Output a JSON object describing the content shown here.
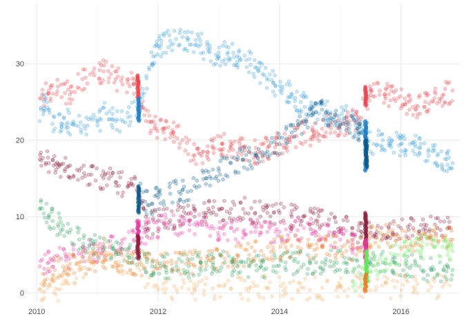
{
  "chart_data": {
    "type": "scatter",
    "title": "",
    "xlabel": "",
    "ylabel": "",
    "xlim": [
      2009.85,
      2016.97
    ],
    "ylim": [
      -1.2,
      37.8
    ],
    "x_ticks": [
      2010,
      2012,
      2014,
      2016
    ],
    "x_tick_labels": [
      "2010",
      "2012",
      "2014",
      "2016"
    ],
    "y_ticks": [
      0,
      10,
      20,
      30
    ],
    "y_tick_labels": [
      "0",
      "10",
      "20",
      "30"
    ],
    "grid": true,
    "legend": "none",
    "point_opacity": 0.25,
    "series": [
      {
        "color": "#3a9fd6",
        "points": [
          [
            2010.05,
            22.5
          ],
          [
            2010.15,
            25.5
          ],
          [
            2010.3,
            21.5
          ],
          [
            2010.45,
            23
          ],
          [
            2010.6,
            22
          ],
          [
            2010.8,
            21.5
          ],
          [
            2011.0,
            22.5
          ],
          [
            2011.15,
            23.5
          ],
          [
            2011.3,
            22.5
          ],
          [
            2011.5,
            23
          ],
          [
            2011.7,
            24
          ],
          [
            2011.85,
            29.5
          ],
          [
            2011.95,
            31
          ],
          [
            2012.05,
            32.5
          ],
          [
            2012.2,
            33
          ],
          [
            2012.4,
            33.5
          ],
          [
            2012.55,
            32.5
          ],
          [
            2012.7,
            32.5
          ],
          [
            2012.85,
            31.5
          ],
          [
            2013.0,
            31
          ],
          [
            2013.15,
            31.5
          ],
          [
            2013.3,
            31
          ],
          [
            2013.45,
            30.5
          ],
          [
            2013.6,
            29.5
          ],
          [
            2013.75,
            28.5
          ],
          [
            2013.9,
            27.5
          ],
          [
            2014.05,
            27
          ],
          [
            2014.2,
            26
          ],
          [
            2014.35,
            25
          ],
          [
            2014.5,
            24
          ],
          [
            2014.65,
            23.5
          ],
          [
            2014.8,
            23.5
          ],
          [
            2014.95,
            22.5
          ],
          [
            2015.1,
            23
          ],
          [
            2015.25,
            22
          ],
          [
            2015.35,
            21
          ],
          [
            2015.55,
            19.5
          ],
          [
            2015.7,
            20
          ],
          [
            2015.85,
            20
          ],
          [
            2016.0,
            19.5
          ],
          [
            2016.15,
            19.5
          ],
          [
            2016.3,
            19
          ],
          [
            2016.45,
            18.5
          ],
          [
            2016.6,
            18
          ],
          [
            2016.75,
            17.5
          ],
          [
            2016.85,
            17
          ]
        ]
      },
      {
        "color": "#e8474f",
        "points": [
          [
            2010.05,
            25.5
          ],
          [
            2010.2,
            26.5
          ],
          [
            2010.35,
            27
          ],
          [
            2010.55,
            26
          ],
          [
            2010.75,
            28
          ],
          [
            2010.95,
            28.5
          ],
          [
            2011.1,
            29
          ],
          [
            2011.3,
            28
          ],
          [
            2011.5,
            27.5
          ],
          [
            2011.65,
            27.5
          ],
          [
            2011.8,
            22.5
          ],
          [
            2011.95,
            22
          ],
          [
            2012.1,
            21.5
          ],
          [
            2012.25,
            21
          ],
          [
            2012.4,
            20
          ],
          [
            2012.6,
            18
          ],
          [
            2012.75,
            18.5
          ],
          [
            2012.9,
            19
          ],
          [
            2013.05,
            19.5
          ],
          [
            2013.2,
            19
          ],
          [
            2013.35,
            19
          ],
          [
            2013.5,
            18.5
          ],
          [
            2013.65,
            18.5
          ],
          [
            2013.8,
            19
          ],
          [
            2013.95,
            19.5
          ],
          [
            2014.1,
            20
          ],
          [
            2014.25,
            20.5
          ],
          [
            2014.4,
            21
          ],
          [
            2014.55,
            20.5
          ],
          [
            2014.7,
            21.5
          ],
          [
            2014.85,
            22
          ],
          [
            2015.0,
            22
          ],
          [
            2015.15,
            22.5
          ],
          [
            2015.3,
            23
          ],
          [
            2015.5,
            26.5
          ],
          [
            2015.65,
            26.5
          ],
          [
            2015.8,
            26
          ],
          [
            2015.95,
            25.5
          ],
          [
            2016.1,
            25
          ],
          [
            2016.25,
            24.5
          ],
          [
            2016.4,
            25
          ],
          [
            2016.55,
            25.5
          ],
          [
            2016.7,
            26
          ],
          [
            2016.85,
            26.5
          ]
        ]
      },
      {
        "color": "#0c5a8a",
        "points": [
          [
            2011.68,
            13
          ],
          [
            2011.85,
            11.5
          ],
          [
            2012.0,
            12.5
          ],
          [
            2012.2,
            13
          ],
          [
            2012.4,
            13.5
          ],
          [
            2012.6,
            14
          ],
          [
            2012.8,
            15
          ],
          [
            2013.0,
            16
          ],
          [
            2013.2,
            17
          ],
          [
            2013.4,
            17.5
          ],
          [
            2013.6,
            18
          ],
          [
            2013.8,
            18.5
          ],
          [
            2014.0,
            19.5
          ],
          [
            2014.2,
            21
          ],
          [
            2014.4,
            22.5
          ],
          [
            2014.55,
            23.5
          ],
          [
            2014.7,
            24
          ],
          [
            2014.9,
            23
          ],
          [
            2015.1,
            22
          ],
          [
            2015.3,
            21
          ],
          [
            2015.42,
            20.5
          ]
        ]
      },
      {
        "color": "#8a1e3c",
        "points": [
          [
            2010.05,
            17.5
          ],
          [
            2010.2,
            17
          ],
          [
            2010.35,
            16.5
          ],
          [
            2010.5,
            16.5
          ],
          [
            2010.7,
            16
          ],
          [
            2010.9,
            15.5
          ],
          [
            2011.1,
            15
          ],
          [
            2011.3,
            14.5
          ],
          [
            2011.5,
            14
          ],
          [
            2011.65,
            13.5
          ],
          [
            2011.8,
            9
          ],
          [
            2012.0,
            9.5
          ],
          [
            2012.2,
            9.5
          ],
          [
            2012.4,
            10
          ],
          [
            2012.6,
            10
          ],
          [
            2012.8,
            10.5
          ],
          [
            2013.0,
            11
          ],
          [
            2013.2,
            11
          ],
          [
            2013.4,
            11
          ],
          [
            2013.6,
            10.5
          ],
          [
            2013.8,
            10.5
          ],
          [
            2014.0,
            10.5
          ],
          [
            2014.2,
            10
          ],
          [
            2014.4,
            10
          ],
          [
            2014.6,
            9.5
          ],
          [
            2014.8,
            9
          ],
          [
            2015.0,
            8.5
          ],
          [
            2015.2,
            8.5
          ],
          [
            2015.35,
            8
          ],
          [
            2015.6,
            8
          ],
          [
            2015.8,
            8.5
          ],
          [
            2016.0,
            8.5
          ],
          [
            2016.2,
            8.5
          ],
          [
            2016.4,
            8.5
          ],
          [
            2016.6,
            8.5
          ],
          [
            2016.8,
            8.5
          ]
        ]
      },
      {
        "color": "#e8399e",
        "points": [
          [
            2010.05,
            3.5
          ],
          [
            2010.2,
            4
          ],
          [
            2010.4,
            4.5
          ],
          [
            2010.6,
            5
          ],
          [
            2010.8,
            5.5
          ],
          [
            2011.0,
            5.5
          ],
          [
            2011.2,
            6
          ],
          [
            2011.4,
            6.5
          ],
          [
            2011.6,
            7
          ],
          [
            2011.8,
            8
          ],
          [
            2012.0,
            8.5
          ],
          [
            2012.2,
            9
          ],
          [
            2012.4,
            9
          ],
          [
            2012.6,
            9
          ],
          [
            2012.8,
            9
          ],
          [
            2013.0,
            8.5
          ],
          [
            2013.2,
            8.5
          ],
          [
            2013.4,
            8
          ],
          [
            2013.6,
            8
          ],
          [
            2013.8,
            8
          ],
          [
            2014.0,
            8
          ],
          [
            2014.2,
            8.5
          ],
          [
            2014.4,
            8.5
          ],
          [
            2014.6,
            8
          ],
          [
            2014.8,
            7.5
          ],
          [
            2015.0,
            7
          ],
          [
            2015.2,
            6.5
          ],
          [
            2015.35,
            6
          ]
        ]
      },
      {
        "color": "#e8802a",
        "points": [
          [
            2010.1,
            2.5
          ],
          [
            2010.3,
            3
          ],
          [
            2010.5,
            3.5
          ],
          [
            2010.7,
            4
          ],
          [
            2010.9,
            4
          ],
          [
            2011.1,
            4
          ],
          [
            2011.3,
            4
          ],
          [
            2011.5,
            4
          ],
          [
            2011.7,
            4
          ],
          [
            2011.9,
            4
          ],
          [
            2012.1,
            4
          ],
          [
            2012.3,
            4
          ],
          [
            2012.5,
            4
          ],
          [
            2012.7,
            4
          ],
          [
            2012.9,
            4.5
          ],
          [
            2013.1,
            4.5
          ],
          [
            2013.3,
            5
          ],
          [
            2013.5,
            5
          ],
          [
            2013.7,
            5.5
          ],
          [
            2013.9,
            5.5
          ],
          [
            2014.1,
            6
          ],
          [
            2014.3,
            6
          ],
          [
            2014.5,
            6
          ],
          [
            2014.7,
            6
          ],
          [
            2014.9,
            6
          ],
          [
            2015.1,
            5.5
          ],
          [
            2015.3,
            5.5
          ],
          [
            2015.5,
            7.5
          ],
          [
            2015.7,
            7.5
          ],
          [
            2015.9,
            7.5
          ],
          [
            2016.1,
            7
          ],
          [
            2016.3,
            7
          ],
          [
            2016.5,
            7
          ],
          [
            2016.7,
            7
          ],
          [
            2016.85,
            7
          ]
        ]
      },
      {
        "color": "#2f9e5e",
        "points": [
          [
            2010.05,
            11
          ],
          [
            2010.2,
            10
          ],
          [
            2010.35,
            9
          ],
          [
            2010.5,
            8
          ],
          [
            2010.7,
            7
          ],
          [
            2010.9,
            6.5
          ],
          [
            2011.1,
            6
          ],
          [
            2011.3,
            5.5
          ],
          [
            2011.5,
            5
          ],
          [
            2011.7,
            4.5
          ],
          [
            2011.9,
            3.5
          ],
          [
            2012.1,
            3.5
          ],
          [
            2012.3,
            3.5
          ],
          [
            2012.5,
            3.5
          ],
          [
            2012.7,
            4
          ],
          [
            2012.9,
            4
          ],
          [
            2013.1,
            4
          ],
          [
            2013.3,
            3.5
          ],
          [
            2013.5,
            3.5
          ],
          [
            2013.7,
            3.5
          ],
          [
            2013.9,
            3.5
          ],
          [
            2014.1,
            4
          ],
          [
            2014.3,
            4
          ],
          [
            2014.5,
            4
          ],
          [
            2014.7,
            4
          ],
          [
            2014.9,
            4
          ],
          [
            2015.1,
            4
          ],
          [
            2015.3,
            3.5
          ],
          [
            2015.5,
            4
          ],
          [
            2015.7,
            4
          ],
          [
            2015.9,
            4
          ],
          [
            2016.1,
            3.5
          ],
          [
            2016.3,
            3.5
          ],
          [
            2016.5,
            3
          ],
          [
            2016.7,
            3
          ],
          [
            2016.85,
            3
          ]
        ]
      },
      {
        "color": "#f4b56e",
        "points": [
          [
            2010.05,
            0.5
          ],
          [
            2010.2,
            1
          ],
          [
            2010.35,
            0.5
          ],
          [
            2010.5,
            2.5
          ],
          [
            2010.7,
            3
          ],
          [
            2010.9,
            4
          ],
          [
            2011.1,
            6
          ],
          [
            2011.3,
            4
          ],
          [
            2011.5,
            4
          ],
          [
            2011.7,
            3
          ],
          [
            2012.0,
            0.4
          ],
          [
            2012.3,
            0.5
          ],
          [
            2012.6,
            0.5
          ],
          [
            2012.9,
            0.6
          ],
          [
            2013.2,
            0.6
          ],
          [
            2013.5,
            0.7
          ],
          [
            2013.8,
            0.7
          ],
          [
            2014.1,
            0.7
          ],
          [
            2014.4,
            0.7
          ],
          [
            2014.7,
            0.7
          ],
          [
            2015.0,
            1
          ],
          [
            2015.3,
            0.8
          ],
          [
            2015.6,
            0.8
          ],
          [
            2015.9,
            0.8
          ],
          [
            2016.2,
            0.8
          ],
          [
            2016.5,
            0.8
          ],
          [
            2016.8,
            1
          ]
        ]
      },
      {
        "color": "#66e85a",
        "points": [
          [
            2015.2,
            1.5
          ],
          [
            2015.38,
            2
          ],
          [
            2015.55,
            3.5
          ],
          [
            2015.75,
            4.5
          ],
          [
            2015.95,
            5
          ],
          [
            2016.15,
            5.5
          ],
          [
            2016.35,
            6
          ],
          [
            2016.55,
            6
          ],
          [
            2016.75,
            6
          ],
          [
            2016.85,
            5.5
          ]
        ]
      }
    ],
    "dense_clusters": [
      {
        "color": "#e8474f",
        "x": 2011.67,
        "ymin": 25.5,
        "ymax": 28.5
      },
      {
        "color": "#1f7fc4",
        "x": 2011.68,
        "ymin": 22.5,
        "ymax": 25.5
      },
      {
        "color": "#0c5a8a",
        "x": 2011.68,
        "ymin": 10.5,
        "ymax": 14
      },
      {
        "color": "#e8399e",
        "x": 2011.67,
        "ymin": 7,
        "ymax": 9.5
      },
      {
        "color": "#8a1e3c",
        "x": 2011.67,
        "ymin": 4.5,
        "ymax": 7.5
      },
      {
        "color": "#e8474f",
        "x": 2015.42,
        "ymin": 24.5,
        "ymax": 27
      },
      {
        "color": "#1f7fc4",
        "x": 2015.42,
        "ymin": 16,
        "ymax": 22.5
      },
      {
        "color": "#0c5a8a",
        "x": 2015.43,
        "ymin": 16.5,
        "ymax": 20
      },
      {
        "color": "#8a1e3c",
        "x": 2015.42,
        "ymin": 6,
        "ymax": 10.5
      },
      {
        "color": "#e8399e",
        "x": 2015.42,
        "ymin": 4,
        "ymax": 7
      },
      {
        "color": "#66e85a",
        "x": 2015.43,
        "ymin": 1.5,
        "ymax": 5.5
      },
      {
        "color": "#e8802a",
        "x": 2015.42,
        "ymin": 0.2,
        "ymax": 2.5
      }
    ]
  }
}
